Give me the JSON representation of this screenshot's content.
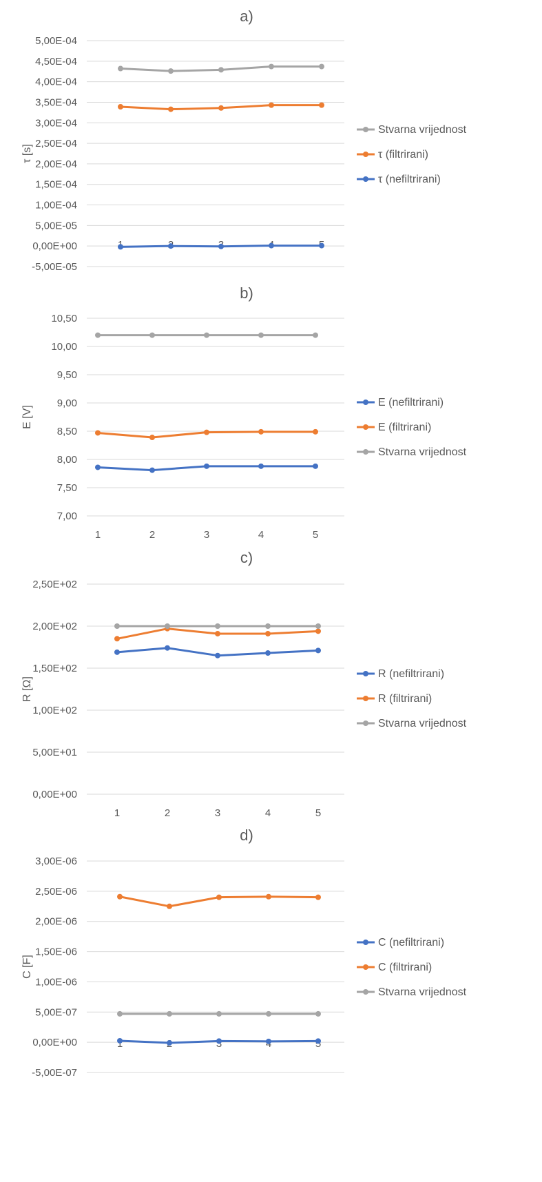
{
  "chart_data": [
    {
      "type": "line",
      "title": "a)",
      "xlabel": "",
      "ylabel": "τ [s]",
      "categories": [
        "1",
        "2",
        "3",
        "4",
        "5"
      ],
      "ylim": [
        -5e-05,
        0.0005
      ],
      "yticks": [
        "5,00E-04",
        "4,50E-04",
        "4,00E-04",
        "3,50E-04",
        "3,00E-04",
        "2,50E-04",
        "2,00E-04",
        "1,50E-04",
        "1,00E-04",
        "5,00E-05",
        "0,00E+00",
        "-5,00E-05"
      ],
      "legend_position": "right",
      "grid": true,
      "series": [
        {
          "name": "Stvarna vrijednost",
          "color": "#a5a5a5",
          "values": [
            0.000432,
            0.000426,
            0.000429,
            0.000437,
            0.000437
          ]
        },
        {
          "name": "τ (filtrirani)",
          "color": "#ed7d31",
          "values": [
            0.000339,
            0.000333,
            0.000336,
            0.000343,
            0.000343
          ]
        },
        {
          "name": "τ (nefiltrirani)",
          "color": "#4472c4",
          "values": [
            -2e-06,
            0.0,
            -1e-06,
            1e-06,
            1e-06
          ]
        }
      ]
    },
    {
      "type": "line",
      "title": "b)",
      "xlabel": "",
      "ylabel": "E [V]",
      "categories": [
        "1",
        "2",
        "3",
        "4",
        "5"
      ],
      "ylim": [
        7.0,
        10.5
      ],
      "yticks": [
        "10,50",
        "10,00",
        "9,50",
        "9,00",
        "8,50",
        "8,00",
        "7,50",
        "7,00"
      ],
      "legend_position": "right",
      "grid": true,
      "series": [
        {
          "name": "E (nefiltrirani)",
          "color": "#4472c4",
          "values": [
            7.86,
            7.81,
            7.88,
            7.88,
            7.88
          ]
        },
        {
          "name": "E (filtrirani)",
          "color": "#ed7d31",
          "values": [
            8.47,
            8.39,
            8.48,
            8.49,
            8.49
          ]
        },
        {
          "name": "Stvarna vrijednost",
          "color": "#a5a5a5",
          "values": [
            10.2,
            10.2,
            10.2,
            10.2,
            10.2
          ]
        }
      ]
    },
    {
      "type": "line",
      "title": "c)",
      "xlabel": "",
      "ylabel": "R [Ω]",
      "categories": [
        "1",
        "2",
        "3",
        "4",
        "5"
      ],
      "ylim": [
        0,
        250
      ],
      "yticks": [
        "2,50E+02",
        "2,00E+02",
        "1,50E+02",
        "1,00E+02",
        "5,00E+01",
        "0,00E+00"
      ],
      "legend_position": "right",
      "grid": true,
      "series": [
        {
          "name": "R (nefiltrirani)",
          "color": "#4472c4",
          "values": [
            169,
            174,
            165,
            168,
            171
          ]
        },
        {
          "name": "R (filtrirani)",
          "color": "#ed7d31",
          "values": [
            185,
            197,
            191,
            191,
            194
          ]
        },
        {
          "name": "Stvarna vrijednost",
          "color": "#a5a5a5",
          "values": [
            200,
            200,
            200,
            200,
            200
          ]
        }
      ]
    },
    {
      "type": "line",
      "title": "d)",
      "xlabel": "",
      "ylabel": "C [F]",
      "categories": [
        "1",
        "2",
        "3",
        "4",
        "5"
      ],
      "ylim": [
        -5e-07,
        3e-06
      ],
      "yticks": [
        "3,00E-06",
        "2,50E-06",
        "2,00E-06",
        "1,50E-06",
        "1,00E-06",
        "5,00E-07",
        "0,00E+00",
        "-5,00E-07"
      ],
      "legend_position": "right",
      "grid": true,
      "series": [
        {
          "name": "C (nefiltrirani)",
          "color": "#4472c4",
          "values": [
            2.5e-08,
            -1e-08,
            2e-08,
            1.5e-08,
            2e-08
          ]
        },
        {
          "name": "C (filtrirani)",
          "color": "#ed7d31",
          "values": [
            2.41e-06,
            2.25e-06,
            2.4e-06,
            2.41e-06,
            2.4e-06
          ]
        },
        {
          "name": "Stvarna vrijednost",
          "color": "#a5a5a5",
          "values": [
            4.7e-07,
            4.7e-07,
            4.7e-07,
            4.7e-07,
            4.7e-07
          ]
        }
      ]
    }
  ]
}
